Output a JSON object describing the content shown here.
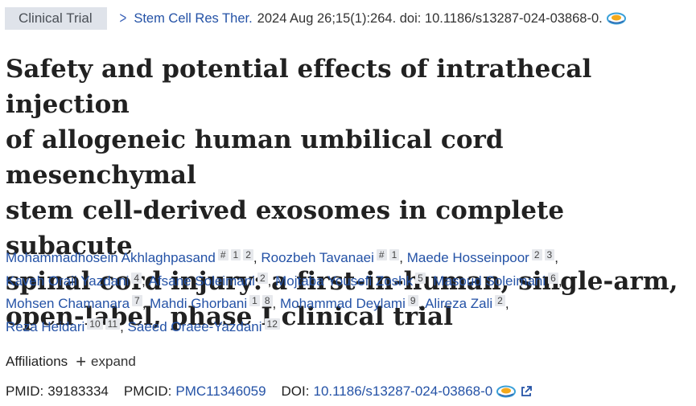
{
  "header": {
    "article_type": "Clinical Trial",
    "journal": "Stem Cell Res Ther.",
    "citation": "2024 Aug 26;15(1):264. doi: 10.1186/s13287-024-03868-0."
  },
  "title_lines": [
    "Safety and potential effects of intrathecal injection",
    "of allogeneic human umbilical cord mesenchymal",
    "stem cell-derived exosomes in complete subacute",
    "spinal cord injury: a first-in-human, single-arm,",
    "open-label, phase I clinical trial"
  ],
  "authors": [
    {
      "name": "Mohammadhosein Akhlaghpasand",
      "sups": [
        "#",
        "1",
        "2"
      ]
    },
    {
      "name": "Roozbeh Tavanaei",
      "sups": [
        "#",
        "1"
      ]
    },
    {
      "name": "Maede Hosseinpoor",
      "sups": [
        "2",
        "3"
      ]
    },
    {
      "name": "Kaveh Oraii Yazdani",
      "sups": [
        "4"
      ]
    },
    {
      "name": "Afsane Soleimani",
      "sups": [
        "2"
      ]
    },
    {
      "name": "Mojtaba Yousefi Zoshk",
      "sups": [
        "5"
      ]
    },
    {
      "name": "Masoud Soleimani",
      "sups": [
        "6"
      ]
    },
    {
      "name": "Mohsen Chamanara",
      "sups": [
        "7"
      ]
    },
    {
      "name": "Mahdi Ghorbani",
      "sups": [
        "1",
        "8"
      ]
    },
    {
      "name": "Mohammad Deylami",
      "sups": [
        "9"
      ]
    },
    {
      "name": "Alireza Zali",
      "sups": [
        "2"
      ]
    },
    {
      "name": "Reza Heidari",
      "sups": [
        "10",
        "11"
      ]
    },
    {
      "name": "Saeed Oraee-Yazdani",
      "sups": [
        "12"
      ]
    }
  ],
  "affiliations": {
    "label": "Affiliations",
    "expand_symbol": "+",
    "expand_label": "expand"
  },
  "identifiers": {
    "pmid_label": "PMID:",
    "pmid": "39183334",
    "pmcid_label": "PMCID:",
    "pmcid": "PMC11346059",
    "doi_label": "DOI:",
    "doi": "10.1186/s13287-024-03868-0"
  },
  "icons": {
    "cite_icon": "free-full-text-icon",
    "external_link": "external-link-icon"
  },
  "colors": {
    "link": "#2452a6",
    "badge_bg": "#dfe3ea",
    "sup_bg": "#e6e8ec",
    "text": "#212121"
  }
}
